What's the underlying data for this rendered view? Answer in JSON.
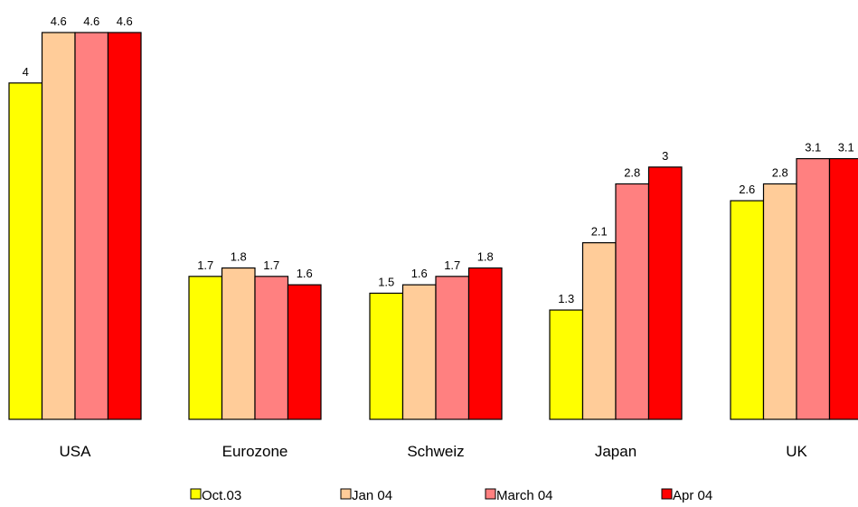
{
  "chart_data": {
    "type": "bar",
    "title": "",
    "xlabel": "",
    "ylabel": "",
    "ylim": [
      0,
      4.6
    ],
    "grid": false,
    "legend_position": "bottom",
    "categories": [
      "USA",
      "Eurozone",
      "Schweiz",
      "Japan",
      "UK"
    ],
    "series": [
      {
        "name": "Oct.03",
        "color": "#ffff00",
        "values": [
          4,
          1.7,
          1.5,
          1.3,
          2.6
        ]
      },
      {
        "name": "Jan 04",
        "color": "#ffcc99",
        "values": [
          4.6,
          1.8,
          1.6,
          2.1,
          2.8
        ]
      },
      {
        "name": "March 04",
        "color": "#ff8080",
        "values": [
          4.6,
          1.7,
          1.7,
          2.8,
          3.1
        ]
      },
      {
        "name": "Apr 04",
        "color": "#ff0000",
        "values": [
          4.6,
          1.6,
          1.8,
          3,
          3.1
        ]
      }
    ]
  }
}
